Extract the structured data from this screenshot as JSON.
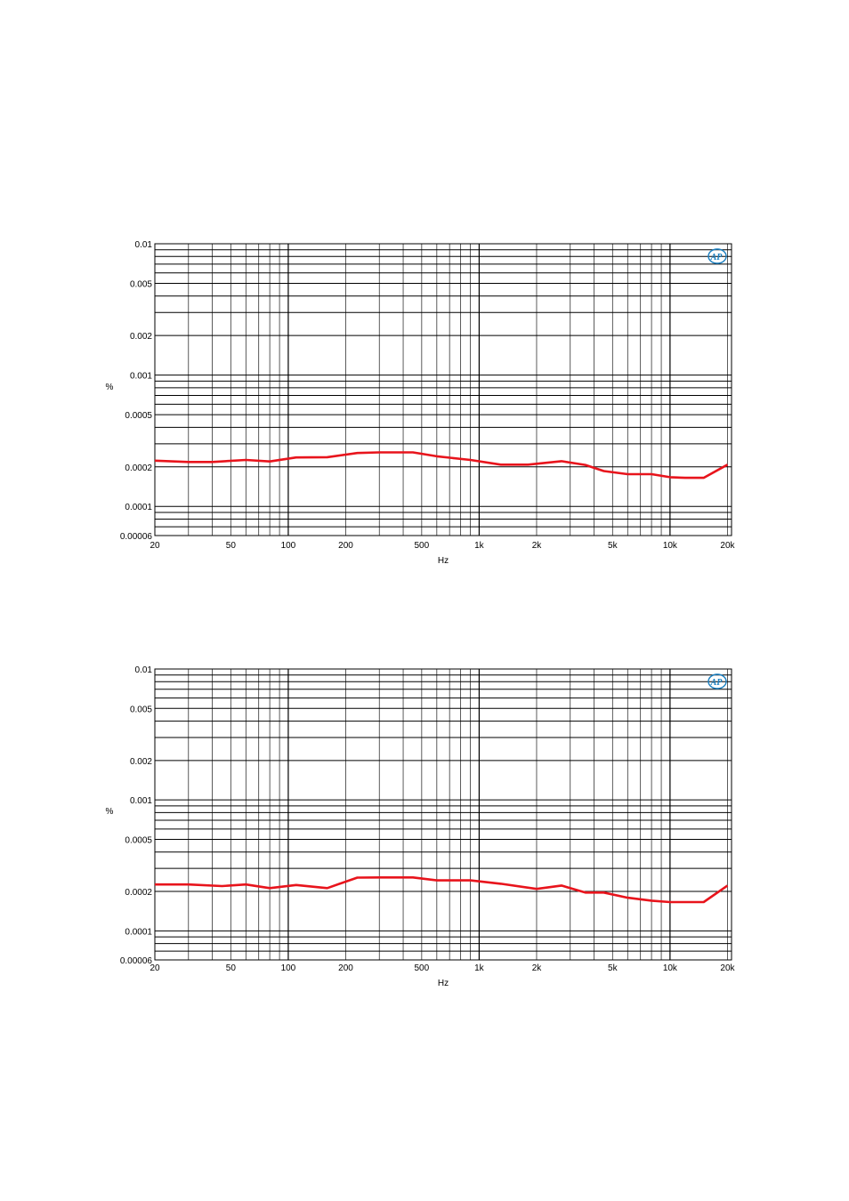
{
  "colors": {
    "series": "#e8141c",
    "grid": "#000000",
    "logo": "#1a7fc0"
  },
  "logo": {
    "text": "AP",
    "icon": "ap-logo-icon"
  },
  "chart_data": [
    {
      "type": "line",
      "xscale": "log",
      "yscale": "log",
      "xlim": [
        20,
        21000
      ],
      "ylim": [
        6e-05,
        0.01
      ],
      "xlabel": "Hz",
      "ylabel": "%",
      "grid": true,
      "xticks": [
        {
          "v": 20,
          "label": "20"
        },
        {
          "v": 50,
          "label": "50"
        },
        {
          "v": 100,
          "label": "100"
        },
        {
          "v": 200,
          "label": "200"
        },
        {
          "v": 500,
          "label": "500"
        },
        {
          "v": 1000,
          "label": "1k"
        },
        {
          "v": 2000,
          "label": "2k"
        },
        {
          "v": 5000,
          "label": "5k"
        },
        {
          "v": 10000,
          "label": "10k"
        },
        {
          "v": 20000,
          "label": "20k"
        }
      ],
      "yticks": [
        {
          "v": 0.01,
          "label": "0.01"
        },
        {
          "v": 0.005,
          "label": "0.005"
        },
        {
          "v": 0.002,
          "label": "0.002"
        },
        {
          "v": 0.001,
          "label": "0.001"
        },
        {
          "v": 0.0005,
          "label": "0.0005"
        },
        {
          "v": 0.0002,
          "label": "0.0002"
        },
        {
          "v": 0.0001,
          "label": "0.0001"
        },
        {
          "v": 6e-05,
          "label": "0.00006"
        }
      ],
      "series": [
        {
          "x": [
            20,
            30,
            40,
            60,
            80,
            110,
            160,
            230,
            300,
            450,
            600,
            900,
            1300,
            1800,
            2700,
            3600,
            4500,
            6000,
            8000,
            10000,
            12000,
            15000,
            20000
          ],
          "y": [
            0.000223,
            0.000218,
            0.000218,
            0.000226,
            0.00022,
            0.000236,
            0.000237,
            0.000255,
            0.000258,
            0.000258,
            0.000241,
            0.000226,
            0.000208,
            0.000208,
            0.000221,
            0.000207,
            0.000186,
            0.000176,
            0.000176,
            0.000167,
            0.000165,
            0.000165,
            0.000208
          ]
        }
      ]
    },
    {
      "type": "line",
      "xscale": "log",
      "yscale": "log",
      "xlim": [
        20,
        21000
      ],
      "ylim": [
        6e-05,
        0.01
      ],
      "xlabel": "Hz",
      "ylabel": "%",
      "grid": true,
      "xticks": [
        {
          "v": 20,
          "label": "20"
        },
        {
          "v": 50,
          "label": "50"
        },
        {
          "v": 100,
          "label": "100"
        },
        {
          "v": 200,
          "label": "200"
        },
        {
          "v": 500,
          "label": "500"
        },
        {
          "v": 1000,
          "label": "1k"
        },
        {
          "v": 2000,
          "label": "2k"
        },
        {
          "v": 5000,
          "label": "5k"
        },
        {
          "v": 10000,
          "label": "10k"
        },
        {
          "v": 20000,
          "label": "20k"
        }
      ],
      "yticks": [
        {
          "v": 0.01,
          "label": "0.01"
        },
        {
          "v": 0.005,
          "label": "0.005"
        },
        {
          "v": 0.002,
          "label": "0.002"
        },
        {
          "v": 0.001,
          "label": "0.001"
        },
        {
          "v": 0.0005,
          "label": "0.0005"
        },
        {
          "v": 0.0002,
          "label": "0.0002"
        },
        {
          "v": 0.0001,
          "label": "0.0001"
        },
        {
          "v": 6e-05,
          "label": "0.00006"
        }
      ],
      "series": [
        {
          "x": [
            20,
            30,
            45,
            60,
            80,
            110,
            160,
            230,
            300,
            450,
            600,
            900,
            1300,
            2000,
            2700,
            3600,
            4500,
            6000,
            8000,
            10000,
            12000,
            15000,
            20000
          ],
          "y": [
            0.000226,
            0.000226,
            0.00022,
            0.000226,
            0.000212,
            0.000224,
            0.000212,
            0.000255,
            0.000256,
            0.000256,
            0.000243,
            0.000243,
            0.000229,
            0.000209,
            0.000222,
            0.000196,
            0.000196,
            0.000179,
            0.00017,
            0.000166,
            0.000166,
            0.000166,
            0.000222
          ]
        }
      ]
    }
  ]
}
